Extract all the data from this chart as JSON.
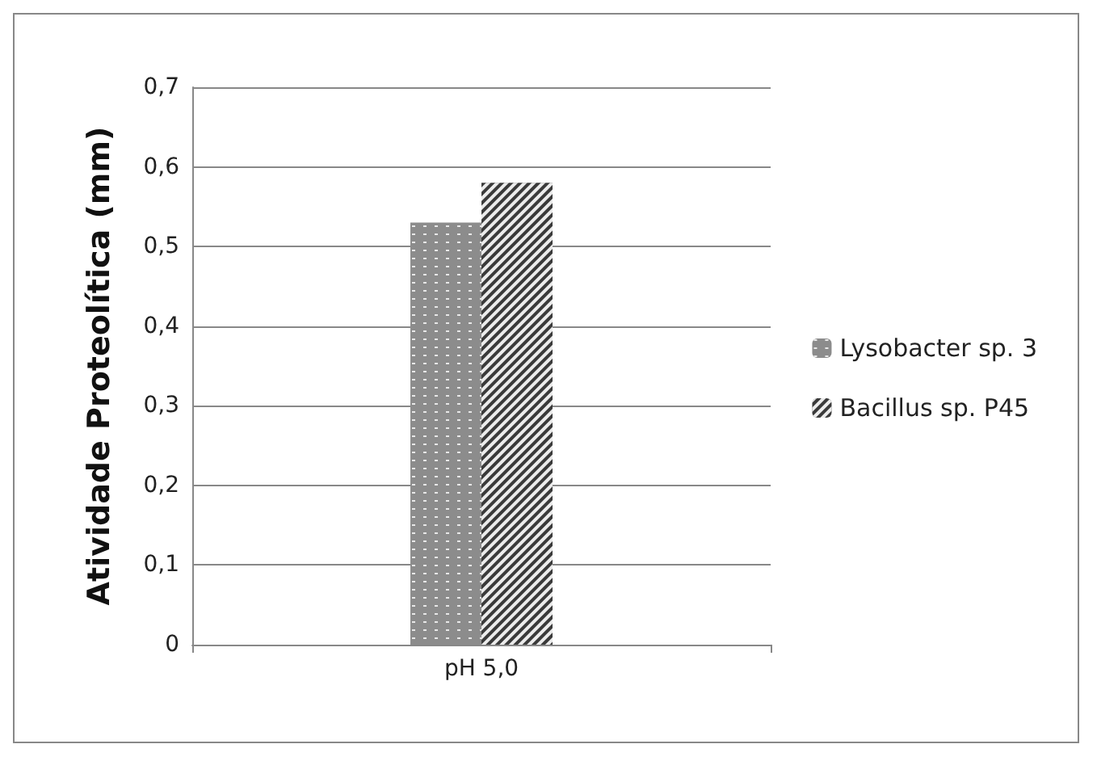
{
  "chart_data": {
    "type": "bar",
    "ylabel": "Atividade Proteolítica (mm)",
    "categories": [
      "pH 5,0"
    ],
    "series": [
      {
        "name": "Lysobacter sp. 3",
        "color": "#8c8c8c",
        "values": [
          0.53
        ]
      },
      {
        "name": "Bacillus sp. P45",
        "color": "#3a3a3a",
        "values": [
          0.58
        ]
      }
    ],
    "ylim": [
      0,
      0.7
    ],
    "yticks": [
      {
        "value": 0,
        "label": "0"
      },
      {
        "value": 0.1,
        "label": "0,1"
      },
      {
        "value": 0.2,
        "label": "0,2"
      },
      {
        "value": 0.3,
        "label": "0,3"
      },
      {
        "value": 0.4,
        "label": "0,4"
      },
      {
        "value": 0.5,
        "label": "0,5"
      },
      {
        "value": 0.6,
        "label": "0,6"
      },
      {
        "value": 0.7,
        "label": "0,7"
      }
    ],
    "grid": "y",
    "legend": "right"
  }
}
